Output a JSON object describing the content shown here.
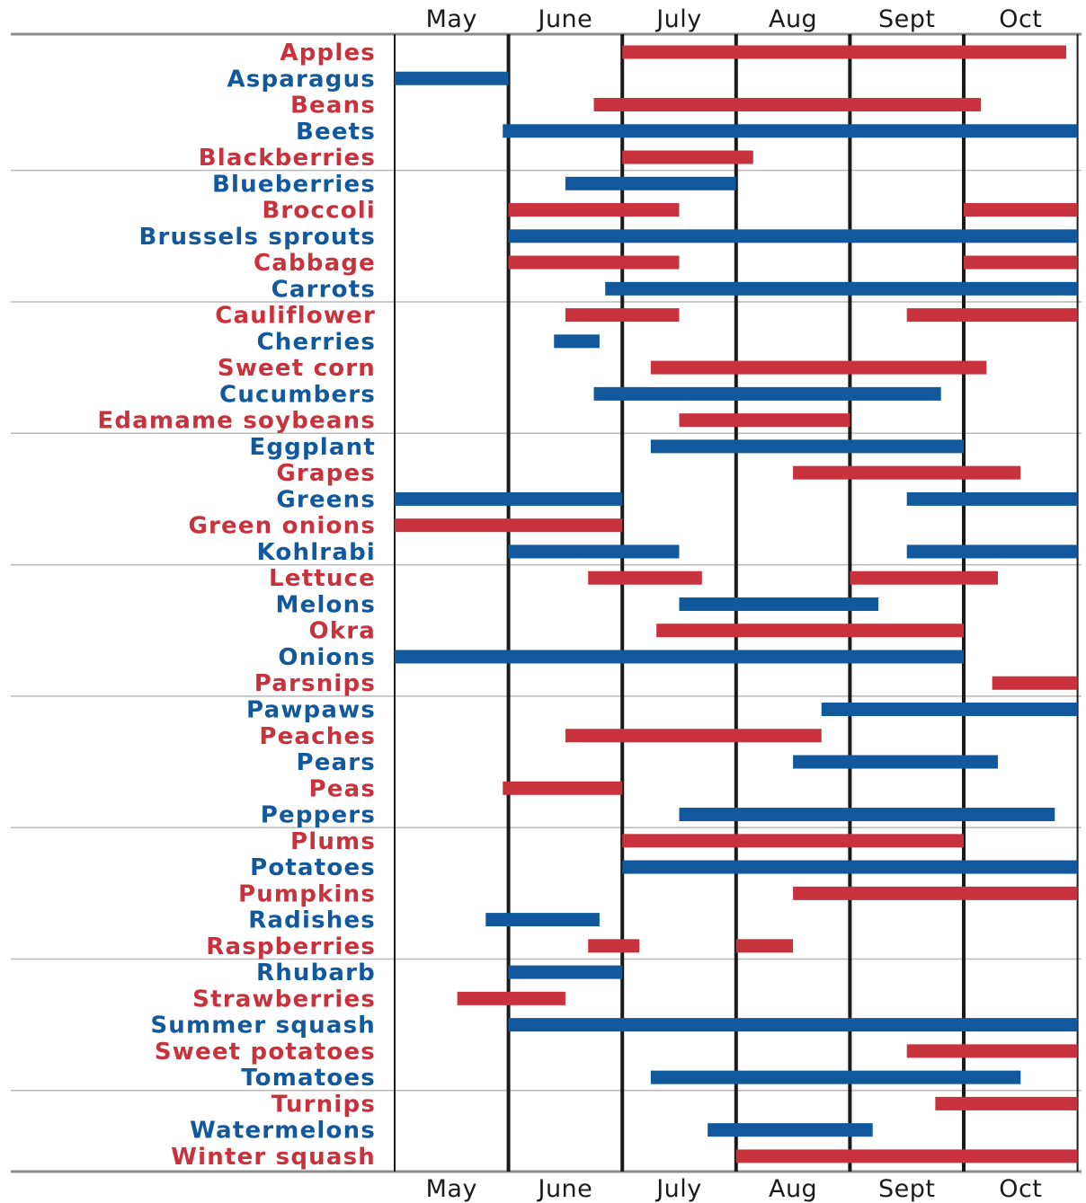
{
  "chart_data": {
    "type": "bar",
    "subtype": "gantt",
    "months": [
      "May",
      "June",
      "July",
      "Aug",
      "Sept",
      "Oct"
    ],
    "colors": {
      "red": "#c8323c",
      "blue": "#11589d"
    },
    "rows": [
      {
        "label": "Apples",
        "color": "red",
        "segments": [
          [
            2.0,
            5.9
          ]
        ]
      },
      {
        "label": "Asparagus",
        "color": "blue",
        "segments": [
          [
            0.0,
            1.0
          ]
        ]
      },
      {
        "label": "Beans",
        "color": "red",
        "segments": [
          [
            1.75,
            5.15
          ]
        ]
      },
      {
        "label": "Beets",
        "color": "blue",
        "segments": [
          [
            0.95,
            6.0
          ]
        ]
      },
      {
        "label": "Blackberries",
        "color": "red",
        "segments": [
          [
            2.0,
            3.15
          ]
        ]
      },
      {
        "label": "Blueberries",
        "color": "blue",
        "segments": [
          [
            1.5,
            3.0
          ]
        ]
      },
      {
        "label": "Broccoli",
        "color": "red",
        "segments": [
          [
            1.0,
            2.5
          ],
          [
            5.0,
            6.0
          ]
        ]
      },
      {
        "label": "Brussels sprouts",
        "color": "blue",
        "segments": [
          [
            1.0,
            6.0
          ]
        ]
      },
      {
        "label": "Cabbage",
        "color": "red",
        "segments": [
          [
            1.0,
            2.5
          ],
          [
            5.0,
            6.0
          ]
        ]
      },
      {
        "label": "Carrots",
        "color": "blue",
        "segments": [
          [
            1.85,
            6.0
          ]
        ]
      },
      {
        "label": "Cauliflower",
        "color": "red",
        "segments": [
          [
            1.5,
            2.5
          ],
          [
            4.5,
            6.0
          ]
        ]
      },
      {
        "label": "Cherries",
        "color": "blue",
        "segments": [
          [
            1.4,
            1.8
          ]
        ]
      },
      {
        "label": "Sweet corn",
        "color": "red",
        "segments": [
          [
            2.25,
            5.2
          ]
        ]
      },
      {
        "label": "Cucumbers",
        "color": "blue",
        "segments": [
          [
            1.75,
            4.8
          ]
        ]
      },
      {
        "label": "Edamame soybeans",
        "color": "red",
        "segments": [
          [
            2.5,
            4.0
          ]
        ]
      },
      {
        "label": "Eggplant",
        "color": "blue",
        "segments": [
          [
            2.25,
            5.0
          ]
        ]
      },
      {
        "label": "Grapes",
        "color": "red",
        "segments": [
          [
            3.5,
            5.5
          ]
        ]
      },
      {
        "label": "Greens",
        "color": "blue",
        "segments": [
          [
            0.0,
            2.0
          ],
          [
            4.5,
            6.0
          ]
        ]
      },
      {
        "label": "Green onions",
        "color": "red",
        "segments": [
          [
            0.0,
            2.0
          ]
        ]
      },
      {
        "label": "Kohlrabi",
        "color": "blue",
        "segments": [
          [
            1.0,
            2.5
          ],
          [
            4.5,
            6.0
          ]
        ]
      },
      {
        "label": "Lettuce",
        "color": "red",
        "segments": [
          [
            1.7,
            2.7
          ],
          [
            4.0,
            5.3
          ]
        ]
      },
      {
        "label": "Melons",
        "color": "blue",
        "segments": [
          [
            2.5,
            4.25
          ]
        ]
      },
      {
        "label": "Okra",
        "color": "red",
        "segments": [
          [
            2.3,
            5.0
          ]
        ]
      },
      {
        "label": "Onions",
        "color": "blue",
        "segments": [
          [
            0.0,
            5.0
          ]
        ]
      },
      {
        "label": "Parsnips",
        "color": "red",
        "segments": [
          [
            5.25,
            6.0
          ]
        ]
      },
      {
        "label": "Pawpaws",
        "color": "blue",
        "segments": [
          [
            3.75,
            6.0
          ]
        ]
      },
      {
        "label": "Peaches",
        "color": "red",
        "segments": [
          [
            1.5,
            3.75
          ]
        ]
      },
      {
        "label": "Pears",
        "color": "blue",
        "segments": [
          [
            3.5,
            5.3
          ]
        ]
      },
      {
        "label": "Peas",
        "color": "red",
        "segments": [
          [
            0.95,
            2.0
          ]
        ]
      },
      {
        "label": "Peppers",
        "color": "blue",
        "segments": [
          [
            2.5,
            5.8
          ]
        ]
      },
      {
        "label": "Plums",
        "color": "red",
        "segments": [
          [
            2.0,
            5.0
          ]
        ]
      },
      {
        "label": "Potatoes",
        "color": "blue",
        "segments": [
          [
            2.0,
            6.0
          ]
        ]
      },
      {
        "label": "Pumpkins",
        "color": "red",
        "segments": [
          [
            3.5,
            6.0
          ]
        ]
      },
      {
        "label": "Radishes",
        "color": "blue",
        "segments": [
          [
            0.8,
            1.8
          ]
        ]
      },
      {
        "label": "Raspberries",
        "color": "red",
        "segments": [
          [
            1.7,
            2.15
          ],
          [
            3.0,
            3.5
          ]
        ]
      },
      {
        "label": "Rhubarb",
        "color": "blue",
        "segments": [
          [
            1.0,
            2.0
          ]
        ]
      },
      {
        "label": "Strawberries",
        "color": "red",
        "segments": [
          [
            0.55,
            1.5
          ]
        ]
      },
      {
        "label": "Summer squash",
        "color": "blue",
        "segments": [
          [
            1.0,
            6.0
          ]
        ]
      },
      {
        "label": "Sweet potatoes",
        "color": "red",
        "segments": [
          [
            4.5,
            6.0
          ]
        ]
      },
      {
        "label": "Tomatoes",
        "color": "blue",
        "segments": [
          [
            2.25,
            5.5
          ]
        ]
      },
      {
        "label": "Turnips",
        "color": "red",
        "segments": [
          [
            4.75,
            6.0
          ]
        ]
      },
      {
        "label": "Watermelons",
        "color": "blue",
        "segments": [
          [
            2.75,
            4.2
          ]
        ]
      },
      {
        "label": "Winter squash",
        "color": "red",
        "segments": [
          [
            3.0,
            6.0
          ]
        ]
      }
    ]
  }
}
